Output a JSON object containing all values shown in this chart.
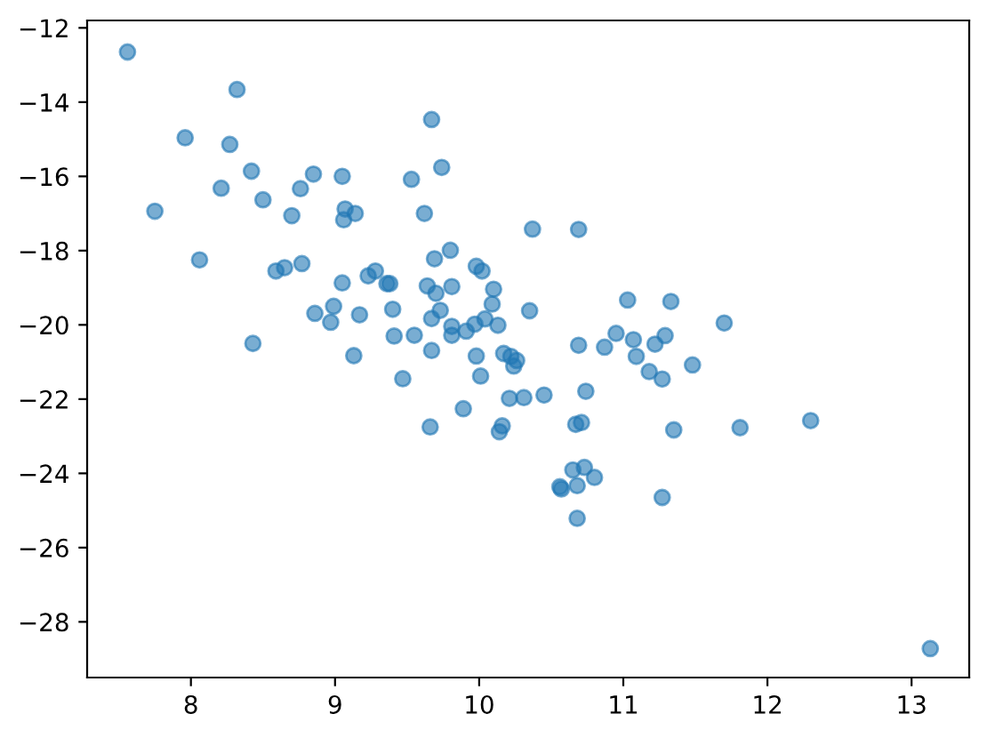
{
  "chart_data": {
    "type": "scatter",
    "x": [
      7.56,
      8.32,
      7.96,
      8.27,
      8.42,
      8.85,
      9.05,
      8.21,
      8.76,
      8.5,
      7.75,
      8.7,
      9.07,
      9.06,
      9.14,
      9.53,
      9.67,
      9.74,
      9.62,
      8.06,
      8.59,
      8.65,
      8.77,
      9.23,
      9.28,
      9.05,
      9.36,
      9.38,
      9.8,
      9.69,
      9.98,
      10.02,
      9.64,
      9.7,
      9.81,
      10.1,
      10.09,
      8.86,
      8.99,
      8.97,
      9.17,
      9.4,
      9.73,
      9.67,
      10.04,
      9.97,
      10.13,
      9.81,
      9.81,
      9.91,
      9.41,
      9.55,
      8.43,
      9.67,
      9.98,
      9.13,
      9.47,
      10.01,
      9.89,
      9.66,
      10.37,
      10.69,
      11.03,
      11.33,
      11.7,
      10.95,
      11.07,
      11.29,
      11.22,
      10.69,
      10.87,
      11.09,
      11.48,
      10.35,
      10.17,
      10.22,
      10.26,
      10.24,
      10.21,
      10.31,
      10.45,
      10.74,
      11.18,
      11.27,
      10.16,
      10.14,
      10.67,
      10.71,
      11.35,
      11.81,
      12.3,
      10.65,
      10.73,
      10.8,
      10.56,
      10.57,
      10.68,
      11.27,
      10.68,
      13.13
    ],
    "values": [
      -12.65,
      -13.66,
      -14.96,
      -15.14,
      -15.86,
      -15.94,
      -16.0,
      -16.32,
      -16.33,
      -16.63,
      -16.94,
      -17.06,
      -16.88,
      -17.17,
      -17.0,
      -16.08,
      -14.47,
      -15.76,
      -17.0,
      -18.25,
      -18.55,
      -18.46,
      -18.35,
      -18.68,
      -18.55,
      -18.87,
      -18.89,
      -18.89,
      -17.99,
      -18.22,
      -18.42,
      -18.55,
      -18.95,
      -19.15,
      -18.97,
      -19.04,
      -19.44,
      -19.69,
      -19.5,
      -19.93,
      -19.73,
      -19.58,
      -19.61,
      -19.83,
      -19.84,
      -19.98,
      -20.01,
      -20.04,
      -20.28,
      -20.17,
      -20.3,
      -20.28,
      -20.5,
      -20.69,
      -20.84,
      -20.83,
      -21.45,
      -21.38,
      -22.26,
      -22.75,
      -17.42,
      -17.43,
      -19.33,
      -19.37,
      -19.95,
      -20.23,
      -20.4,
      -20.29,
      -20.52,
      -20.55,
      -20.6,
      -20.85,
      -21.08,
      -19.62,
      -20.77,
      -20.85,
      -20.96,
      -21.11,
      -21.98,
      -21.96,
      -21.89,
      -21.79,
      -21.26,
      -21.46,
      -22.72,
      -22.88,
      -22.68,
      -22.63,
      -22.83,
      -22.77,
      -22.58,
      -23.91,
      -23.84,
      -24.11,
      -24.36,
      -24.42,
      -24.33,
      -24.65,
      -25.21,
      -28.72
    ],
    "color": "#1f77b4",
    "marker": "circle",
    "grid": false,
    "xlim": [
      7.28,
      13.4
    ],
    "ylim": [
      -29.5,
      -11.8
    ],
    "xticks": [
      8,
      9,
      10,
      11,
      12,
      13
    ],
    "yticks": [
      {
        "value": -28,
        "label": "−28"
      },
      {
        "value": -26,
        "label": "−26"
      },
      {
        "value": -24,
        "label": "−24"
      },
      {
        "value": -22,
        "label": "−22"
      },
      {
        "value": -20,
        "label": "−20"
      },
      {
        "value": -18,
        "label": "−18"
      },
      {
        "value": -16,
        "label": "−16"
      },
      {
        "value": -14,
        "label": "−14"
      },
      {
        "value": -12,
        "label": "−12"
      }
    ]
  }
}
